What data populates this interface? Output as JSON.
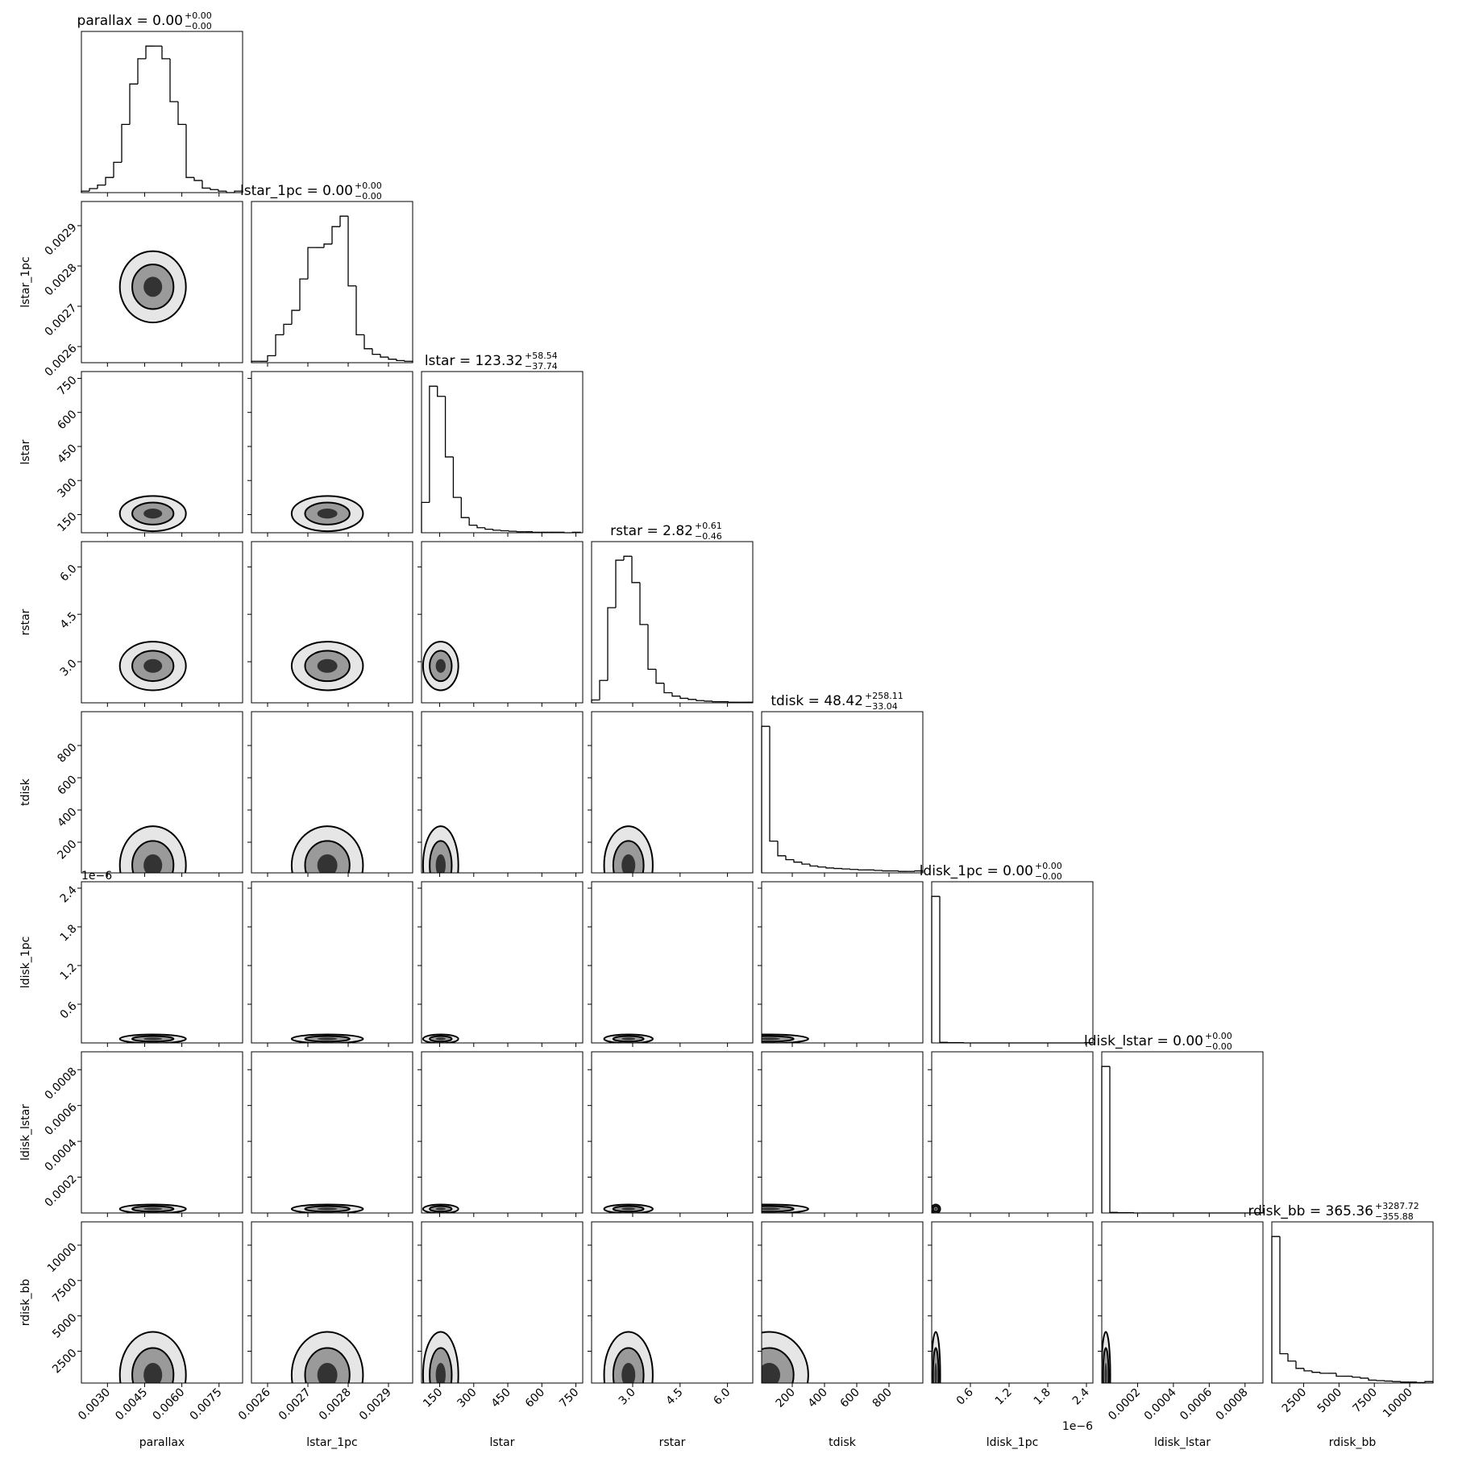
{
  "chart_data": {
    "type": "corner",
    "parameters": [
      {
        "name": "parallax",
        "title": "parallax = 0.00",
        "plus": "+0.00",
        "minus": "−0.00",
        "lim": [
          0.00195,
          0.00845
        ],
        "ticks": [
          {
            "value": 0.003,
            "label": "0.0030"
          },
          0.0045,
          {
            "value": 0.006,
            "label": "0.0060"
          },
          0.0075
        ],
        "bins": [
          0.00195,
          0.002275,
          0.0026,
          0.002925,
          0.00325,
          0.003575,
          0.0039,
          0.004225,
          0.00455,
          0.004875,
          0.0052,
          0.005525,
          0.00585,
          0.006175,
          0.0065,
          0.006825,
          0.00715,
          0.007475,
          0.0078,
          0.008125,
          0.00845
        ],
        "counts": [
          3,
          8,
          15,
          30,
          60,
          135,
          215,
          265,
          290,
          290,
          265,
          180,
          135,
          30,
          24,
          9,
          6,
          3,
          0,
          3
        ]
      },
      {
        "name": "lstar_1pc",
        "title": "lstar_1pc = 0.00",
        "plus": "+0.00",
        "minus": "−0.00",
        "lim": [
          0.00256,
          0.00296
        ],
        "ticks": [
          0.0026,
          0.0027,
          0.0028,
          0.0029
        ],
        "bins": [
          0.00256,
          0.00258,
          0.0026,
          0.00262,
          0.00264,
          0.00266,
          0.00268,
          0.0027,
          0.00272,
          0.00274,
          0.00276,
          0.00278,
          0.0028,
          0.00282,
          0.00284,
          0.00286,
          0.00288,
          0.0029,
          0.00292,
          0.00294,
          0.00296
        ],
        "counts": [
          2,
          2,
          10,
          40,
          55,
          75,
          120,
          165,
          165,
          170,
          195,
          210,
          110,
          40,
          20,
          12,
          8,
          5,
          3,
          2
        ]
      },
      {
        "name": "lstar",
        "title": "lstar = 123.32",
        "plus": "+58.54",
        "minus": "−37.74",
        "lim": [
          70,
          780
        ],
        "ticks": [
          150,
          300,
          450,
          600,
          750
        ],
        "bins": [
          70,
          105,
          140,
          175,
          210,
          245,
          280,
          315,
          350,
          385,
          420,
          455,
          490,
          525,
          560,
          595,
          630,
          665,
          700,
          735,
          770
        ],
        "counts": [
          60,
          290,
          270,
          150,
          70,
          30,
          15,
          10,
          7,
          5,
          4,
          3,
          2,
          2,
          1,
          1,
          1,
          1,
          0,
          1
        ]
      },
      {
        "name": "rstar",
        "title": "rstar = 2.82",
        "plus": "+0.61",
        "minus": "−0.46",
        "lim": [
          1.7,
          6.8
        ],
        "ticks": [
          {
            "value": 3,
            "label": "3.0"
          },
          4.5,
          {
            "value": 6,
            "label": "6.0"
          }
        ],
        "bins": [
          1.7,
          1.955,
          2.21,
          2.465,
          2.72,
          2.975,
          3.23,
          3.485,
          3.74,
          3.995,
          4.25,
          4.505,
          4.76,
          5.015,
          5.27,
          5.525,
          5.78,
          6.035,
          6.29,
          6.545,
          6.8
        ],
        "counts": [
          5,
          40,
          170,
          255,
          262,
          215,
          140,
          60,
          35,
          18,
          12,
          8,
          6,
          4,
          3,
          2,
          2,
          1,
          1,
          1
        ]
      },
      {
        "name": "tdisk",
        "title": "tdisk = 48.42",
        "plus": "+258.11",
        "minus": "−33.04",
        "lim": [
          10,
          1010
        ],
        "ticks": [
          200,
          400,
          600,
          800
        ],
        "bins": [
          10,
          60,
          110,
          160,
          210,
          260,
          310,
          360,
          410,
          460,
          510,
          560,
          610,
          660,
          710,
          760,
          810,
          860,
          910,
          960,
          1010
        ],
        "counts": [
          300,
          65,
          35,
          27,
          22,
          18,
          14,
          12,
          10,
          9,
          8,
          7,
          6,
          6,
          5,
          4,
          4,
          3,
          3,
          4
        ]
      },
      {
        "name": "ldisk_1pc",
        "title": "ldisk_1pc = 0.00",
        "plus": "+0.00",
        "minus": "−0.00",
        "offset": "1e−6",
        "lim": [
          0,
          2.5e-06
        ],
        "ticks": [
          {
            "value": 6e-07,
            "label": "0.6"
          },
          {
            "value": 1.2e-06,
            "label": "1.2"
          },
          {
            "value": 1.8e-06,
            "label": "1.8"
          },
          {
            "value": 2.4e-06,
            "label": "2.4"
          }
        ],
        "bins": [
          0,
          1.25e-07,
          2.5e-07,
          3.75e-07,
          5e-07,
          6.25e-07,
          7.5e-07,
          8.75e-07,
          1e-06,
          1.125e-06,
          1.25e-06,
          1.375e-06,
          1.5e-06,
          1.625e-06,
          1.75e-06,
          1.875e-06,
          2e-06,
          2.125e-06,
          2.25e-06,
          2.375e-06,
          2.5e-06
        ],
        "counts": [
          480,
          2,
          1,
          1,
          0,
          0,
          0,
          0,
          0,
          0,
          0,
          0,
          0,
          0,
          0,
          0,
          0,
          0,
          0,
          1
        ]
      },
      {
        "name": "ldisk_lstar",
        "title": "ldisk_lstar = 0.00",
        "plus": "+0.00",
        "minus": "−0.00",
        "lim": [
          0,
          0.0009
        ],
        "ticks": [
          0.0002,
          0.0004,
          0.0006,
          0.0008
        ],
        "bins": [
          0,
          4.5e-05,
          9e-05,
          0.000135,
          0.00018,
          0.000225,
          0.00027,
          0.000315,
          0.00036,
          0.000405,
          0.00045,
          0.000495,
          0.00054,
          0.000585,
          0.00063,
          0.000675,
          0.00072,
          0.000765,
          0.00081,
          0.000855,
          0.0009
        ],
        "counts": [
          480,
          2,
          1,
          1,
          0,
          0,
          0,
          0,
          0,
          0,
          0,
          0,
          0,
          0,
          0,
          0,
          0,
          0,
          0,
          1
        ]
      },
      {
        "name": "rdisk_bb",
        "title": "rdisk_bb = 365.36",
        "plus": "+3287.72",
        "minus": "−355.88",
        "lim": [
          250,
          11650
        ],
        "ticks": [
          2500,
          5000,
          7500,
          10000
        ],
        "bins": [
          250,
          820,
          1390,
          1960,
          2530,
          3100,
          3670,
          4240,
          4810,
          5380,
          5950,
          6520,
          7090,
          7660,
          8230,
          8800,
          9370,
          9940,
          10510,
          11080,
          11650
        ],
        "counts": [
          300,
          60,
          45,
          30,
          25,
          22,
          20,
          20,
          14,
          14,
          12,
          10,
          6,
          5,
          4,
          3,
          2,
          2,
          1,
          3
        ]
      }
    ]
  }
}
